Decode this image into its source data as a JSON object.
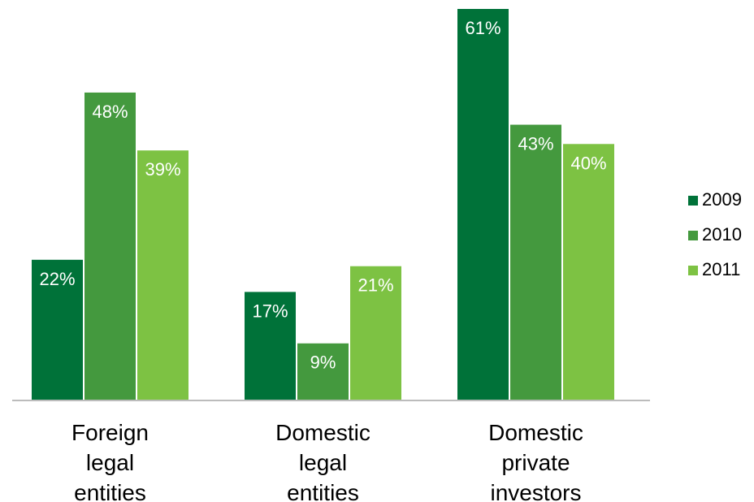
{
  "chart_data": {
    "type": "bar",
    "categories": [
      [
        "Foreign",
        "legal",
        "entities"
      ],
      [
        "Domestic",
        "legal",
        "entities"
      ],
      [
        "Domestic",
        "private",
        "investors"
      ]
    ],
    "series": [
      {
        "name": "2009",
        "color": "#007239",
        "values": [
          22,
          17,
          61
        ],
        "labels": [
          "22%",
          "17%",
          "61%"
        ]
      },
      {
        "name": "2010",
        "color": "#44993e",
        "values": [
          48,
          9,
          43
        ],
        "labels": [
          "48%",
          "9%",
          "43%"
        ]
      },
      {
        "name": "2011",
        "color": "#7dc243",
        "values": [
          39,
          21,
          40
        ],
        "labels": [
          "39%",
          "21%",
          "40%"
        ]
      }
    ],
    "unit": "%",
    "ylim": [
      0,
      61
    ],
    "grid": false,
    "legend": "right",
    "title": "",
    "xlabel": "",
    "ylabel": ""
  }
}
